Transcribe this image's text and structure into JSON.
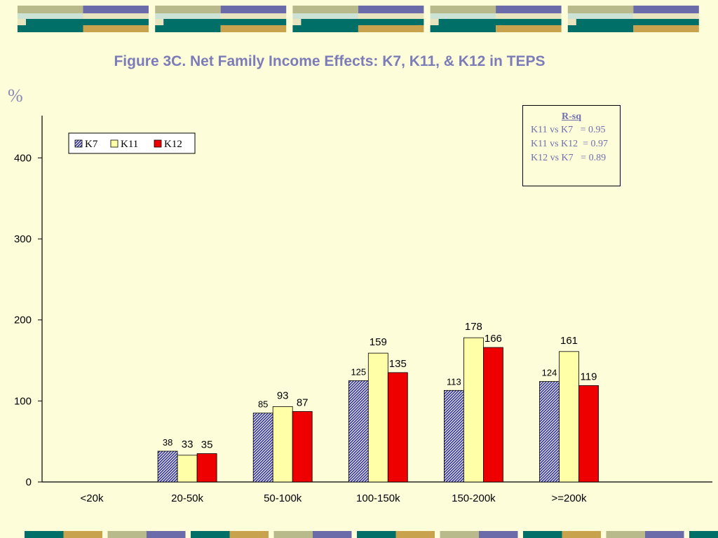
{
  "slide": {
    "title": "Figure 3C. Net Family Income Effects: K7, K11, & K12 in TEPS",
    "unit_label": "%"
  },
  "rsq_box": {
    "title": "R-sq",
    "lines": [
      "K11 vs K7   = 0.95",
      "K11 vs K12  = 0.97",
      "K12 vs K7   = 0.89"
    ]
  },
  "colors": {
    "background": "#FDFDD9",
    "k7_pattern_fg": "#2A2AA0",
    "k7_pattern_bg": "#FFFFFF",
    "k11": "#FFFFA8",
    "k12": "#EE0000",
    "title": "#7C7CB8",
    "deco_blue": "#6B6BAA",
    "deco_olive": "#B8BA8C",
    "deco_teal": "#006F68",
    "deco_gold": "#C8A24C",
    "deco_cream": "#E9E4C0",
    "deco_mint": "#CCE2D4"
  },
  "chart_data": {
    "type": "bar",
    "categories": [
      "<20k",
      "20-50k",
      "50-100k",
      "100-150k",
      "150-200k",
      ">=200k"
    ],
    "series": [
      {
        "name": "K7",
        "values": [
          null,
          38,
          85,
          125,
          113,
          124
        ]
      },
      {
        "name": "K11",
        "values": [
          null,
          33,
          93,
          159,
          178,
          161
        ]
      },
      {
        "name": "K12",
        "values": [
          null,
          35,
          87,
          135,
          166,
          119
        ]
      }
    ],
    "yticks": [
      0,
      100,
      200,
      300,
      400
    ],
    "ylim": [
      0,
      450
    ],
    "legend": "top-left",
    "grid": false
  }
}
